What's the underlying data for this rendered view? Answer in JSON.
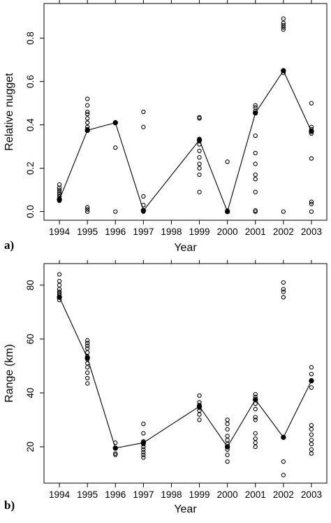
{
  "chart_data": [
    {
      "type": "scatter",
      "panel_label": "a)",
      "xlabel": "Year",
      "ylabel": "Relative nugget",
      "x_ticks": [
        "1994",
        "1995",
        "1996",
        "1997",
        "1998",
        "1999",
        "2000",
        "2001",
        "2002",
        "2003"
      ],
      "y_ticks": [
        "0.0",
        "0.2",
        "0.4",
        "0.6",
        "0.8"
      ],
      "xlim": [
        1993.45,
        2003.55
      ],
      "ylim": [
        -0.04,
        0.96
      ],
      "grid": false,
      "series": [
        {
          "kind": "points",
          "marker": "open-circle",
          "points": [
            [
              1994,
              0.05
            ],
            [
              1994,
              0.06
            ],
            [
              1994,
              0.07
            ],
            [
              1994,
              0.08
            ],
            [
              1994,
              0.09
            ],
            [
              1994,
              0.1
            ],
            [
              1994,
              0.11
            ],
            [
              1994,
              0.125
            ],
            [
              1995,
              0.0
            ],
            [
              1995,
              0.01
            ],
            [
              1995,
              0.02
            ],
            [
              1995,
              0.38
            ],
            [
              1995,
              0.39
            ],
            [
              1995,
              0.41
            ],
            [
              1995,
              0.43
            ],
            [
              1995,
              0.45
            ],
            [
              1995,
              0.46
            ],
            [
              1995,
              0.49
            ],
            [
              1995,
              0.52
            ],
            [
              1996,
              0.0
            ],
            [
              1996,
              0.295
            ],
            [
              1996,
              0.41
            ],
            [
              1997,
              0.0
            ],
            [
              1997,
              0.005
            ],
            [
              1997,
              0.03
            ],
            [
              1997,
              0.07
            ],
            [
              1997,
              0.39
            ],
            [
              1997,
              0.46
            ],
            [
              1999,
              0.09
            ],
            [
              1999,
              0.17
            ],
            [
              1999,
              0.2
            ],
            [
              1999,
              0.22
            ],
            [
              1999,
              0.25
            ],
            [
              1999,
              0.28
            ],
            [
              1999,
              0.31
            ],
            [
              1999,
              0.325
            ],
            [
              1999,
              0.335
            ],
            [
              1999,
              0.43
            ],
            [
              1999,
              0.435
            ],
            [
              2000,
              0.0
            ],
            [
              2000,
              0.005
            ],
            [
              2000,
              0.23
            ],
            [
              2001,
              0.0
            ],
            [
              2001,
              0.005
            ],
            [
              2001,
              0.09
            ],
            [
              2001,
              0.15
            ],
            [
              2001,
              0.17
            ],
            [
              2001,
              0.22
            ],
            [
              2001,
              0.27
            ],
            [
              2001,
              0.35
            ],
            [
              2001,
              0.465
            ],
            [
              2001,
              0.48
            ],
            [
              2001,
              0.49
            ],
            [
              2002,
              0.0
            ],
            [
              2002,
              0.64
            ],
            [
              2002,
              0.65
            ],
            [
              2002,
              0.84
            ],
            [
              2002,
              0.85
            ],
            [
              2002,
              0.86
            ],
            [
              2002,
              0.87
            ],
            [
              2002,
              0.89
            ],
            [
              2003,
              0.0
            ],
            [
              2003,
              0.035
            ],
            [
              2003,
              0.045
            ],
            [
              2003,
              0.245
            ],
            [
              2003,
              0.36
            ],
            [
              2003,
              0.38
            ],
            [
              2003,
              0.39
            ],
            [
              2003,
              0.5
            ]
          ]
        },
        {
          "kind": "line",
          "marker": "filled-circle",
          "x": [
            1994,
            1995,
            1996,
            1997,
            1999,
            2000,
            2001,
            2002,
            2003
          ],
          "y": [
            0.055,
            0.375,
            0.41,
            0.005,
            0.33,
            0.0,
            0.455,
            0.65,
            0.37
          ]
        }
      ]
    },
    {
      "type": "scatter",
      "panel_label": "b)",
      "xlabel": "Year",
      "ylabel": "Range (km)",
      "x_ticks": [
        "1994",
        "1995",
        "1996",
        "1997",
        "1998",
        "1999",
        "2000",
        "2001",
        "2002",
        "2003"
      ],
      "y_ticks": [
        "20",
        "40",
        "60",
        "80"
      ],
      "xlim": [
        1993.45,
        2003.55
      ],
      "ylim": [
        6.5,
        88
      ],
      "grid": false,
      "series": [
        {
          "kind": "points",
          "marker": "open-circle",
          "points": [
            [
              1994,
              74.5
            ],
            [
              1994,
              75.5
            ],
            [
              1994,
              76.5
            ],
            [
              1994,
              77.0
            ],
            [
              1994,
              77.5
            ],
            [
              1994,
              78.5
            ],
            [
              1994,
              80.0
            ],
            [
              1994,
              81.5
            ],
            [
              1994,
              84.0
            ],
            [
              1995,
              43.5
            ],
            [
              1995,
              45.5
            ],
            [
              1995,
              47.5
            ],
            [
              1995,
              49.5
            ],
            [
              1995,
              51.0
            ],
            [
              1995,
              52.5
            ],
            [
              1995,
              53.5
            ],
            [
              1995,
              55.0
            ],
            [
              1995,
              56.5
            ],
            [
              1995,
              57.5
            ],
            [
              1995,
              58.5
            ],
            [
              1995,
              59.5
            ],
            [
              1996,
              17.0
            ],
            [
              1996,
              17.5
            ],
            [
              1996,
              21.5
            ],
            [
              1997,
              16.0
            ],
            [
              1997,
              17.0
            ],
            [
              1997,
              18.0
            ],
            [
              1997,
              19.0
            ],
            [
              1997,
              20.0
            ],
            [
              1997,
              21.0
            ],
            [
              1997,
              22.0
            ],
            [
              1997,
              25.0
            ],
            [
              1997,
              28.5
            ],
            [
              1999,
              30.0
            ],
            [
              1999,
              32.0
            ],
            [
              1999,
              33.5
            ],
            [
              1999,
              34.5
            ],
            [
              1999,
              35.5
            ],
            [
              1999,
              36.5
            ],
            [
              1999,
              39.0
            ],
            [
              2000,
              14.5
            ],
            [
              2000,
              17.0
            ],
            [
              2000,
              19.0
            ],
            [
              2000,
              21.0
            ],
            [
              2000,
              22.5
            ],
            [
              2000,
              24.0
            ],
            [
              2000,
              26.5
            ],
            [
              2000,
              28.5
            ],
            [
              2000,
              30.0
            ],
            [
              2001,
              20.0
            ],
            [
              2001,
              21.5
            ],
            [
              2001,
              23.0
            ],
            [
              2001,
              25.0
            ],
            [
              2001,
              30.0
            ],
            [
              2001,
              31.0
            ],
            [
              2001,
              34.0
            ],
            [
              2001,
              36.0
            ],
            [
              2001,
              37.5
            ],
            [
              2001,
              38.5
            ],
            [
              2001,
              39.5
            ],
            [
              2002,
              9.5
            ],
            [
              2002,
              14.5
            ],
            [
              2002,
              75.5
            ],
            [
              2002,
              77.5
            ],
            [
              2002,
              78.5
            ],
            [
              2002,
              81.0
            ],
            [
              2003,
              17.5
            ],
            [
              2003,
              19.0
            ],
            [
              2003,
              21.0
            ],
            [
              2003,
              22.5
            ],
            [
              2003,
              24.5
            ],
            [
              2003,
              26.5
            ],
            [
              2003,
              28.0
            ],
            [
              2003,
              42.0
            ],
            [
              2003,
              47.0
            ],
            [
              2003,
              49.5
            ]
          ]
        },
        {
          "kind": "line",
          "marker": "filled-circle",
          "x": [
            1994,
            1995,
            1996,
            1997,
            1999,
            2000,
            2001,
            2002,
            2003
          ],
          "y": [
            75.5,
            53.0,
            19.5,
            21.5,
            35.0,
            20.0,
            37.5,
            23.5,
            44.5
          ]
        }
      ]
    }
  ]
}
